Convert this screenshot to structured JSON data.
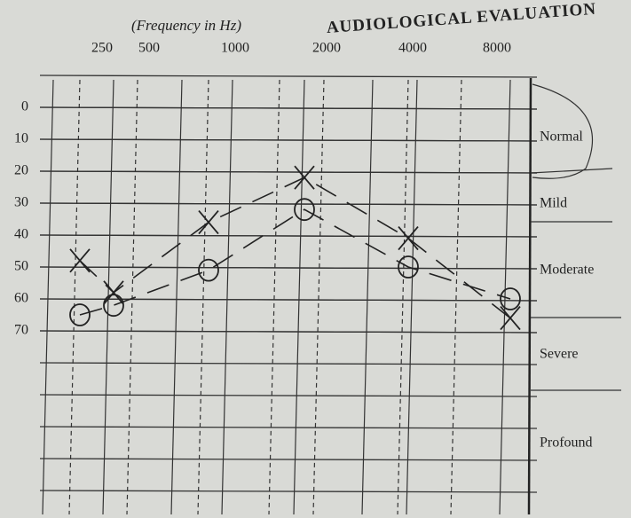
{
  "chart_data": {
    "type": "line",
    "title": "AUDIOLOGICAL EVALUATION",
    "x_label": "(Frequency in Hz)",
    "categories": [
      "250",
      "500",
      "1000",
      "2000",
      "4000",
      "8000"
    ],
    "series": [
      {
        "name": "X",
        "color": "#222222",
        "marker": "cross",
        "values": [
          48,
          58,
          36,
          22,
          41,
          66
        ]
      },
      {
        "name": "O",
        "color": "#222222",
        "marker": "circle",
        "values": [
          65,
          62,
          51,
          32,
          50,
          60
        ]
      }
    ],
    "ylim": [
      -10,
      120
    ],
    "yticks": [
      0,
      10,
      20,
      30,
      40,
      50,
      60,
      70
    ],
    "y_inverted": true,
    "grid": true,
    "bands": [
      "Normal",
      "Mild",
      "Moderate",
      "Severe",
      "Profound"
    ]
  }
}
